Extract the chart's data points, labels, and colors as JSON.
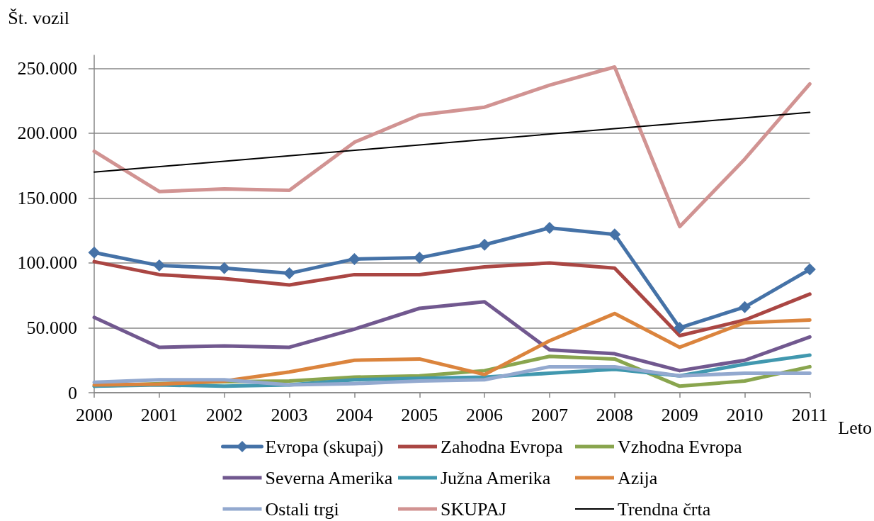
{
  "chart_data": {
    "type": "line",
    "xlabel": "Leto",
    "ylabel": "Št. vozil",
    "x": [
      2000,
      2001,
      2002,
      2003,
      2004,
      2005,
      2006,
      2007,
      2008,
      2009,
      2010,
      2011
    ],
    "xlim": [
      2000,
      2011
    ],
    "xticks": [
      2000,
      2001,
      2002,
      2003,
      2004,
      2005,
      2006,
      2007,
      2008,
      2009,
      2010,
      2011
    ],
    "ylim": [
      0,
      260000
    ],
    "yticks": [
      0,
      {
        "value": 50000,
        "label": "50.000"
      },
      {
        "value": 100000,
        "label": "100.000"
      },
      {
        "value": 150000,
        "label": "150.000"
      },
      {
        "value": 200000,
        "label": "200.000"
      },
      {
        "value": 250000,
        "label": "250.000"
      }
    ],
    "grid": "y",
    "legend": "bottom",
    "marker": "none",
    "series": [
      {
        "name": "Evropa (skupaj)",
        "color": "#4572a7",
        "marker": "diamond",
        "values": [
          108000,
          98000,
          96000,
          92000,
          103000,
          104000,
          114000,
          127000,
          122000,
          50000,
          66000,
          95000
        ]
      },
      {
        "name": "Zahodna Evropa",
        "color": "#aa4643",
        "values": [
          101000,
          91000,
          88000,
          83000,
          91000,
          91000,
          97000,
          100000,
          96000,
          44000,
          56000,
          76000
        ]
      },
      {
        "name": "Vzhodna Evropa",
        "color": "#89a54e",
        "values": [
          5000,
          7000,
          8500,
          9000,
          12000,
          13000,
          17000,
          28000,
          26000,
          5000,
          9000,
          20000
        ]
      },
      {
        "name": "Severna Amerika",
        "color": "#71588f",
        "values": [
          58000,
          35000,
          36000,
          35000,
          49000,
          65000,
          70000,
          33000,
          30000,
          17000,
          25000,
          43000
        ]
      },
      {
        "name": "Južna Amerika",
        "color": "#4198af",
        "values": [
          5000,
          6000,
          5000,
          6000,
          10000,
          11000,
          12000,
          15000,
          18000,
          13000,
          22000,
          29000
        ]
      },
      {
        "name": "Azija",
        "color": "#db843d",
        "values": [
          6000,
          6500,
          9000,
          16000,
          25000,
          26000,
          14000,
          40000,
          61000,
          35000,
          54000,
          56000
        ]
      },
      {
        "name": "Ostali trgi",
        "color": "#93a9cf",
        "values": [
          8000,
          10000,
          10000,
          6000,
          7000,
          9000,
          10000,
          20000,
          20000,
          13000,
          15000,
          15000
        ]
      },
      {
        "name": "SKUPAJ",
        "color": "#d19392",
        "values": [
          186000,
          155000,
          157000,
          156000,
          193000,
          214000,
          220000,
          237000,
          251000,
          128000,
          180000,
          238000
        ]
      },
      {
        "name": "Trendna črta",
        "color": "#000000",
        "x": [
          2000,
          2011
        ],
        "values": [
          170000,
          216000
        ]
      }
    ]
  }
}
